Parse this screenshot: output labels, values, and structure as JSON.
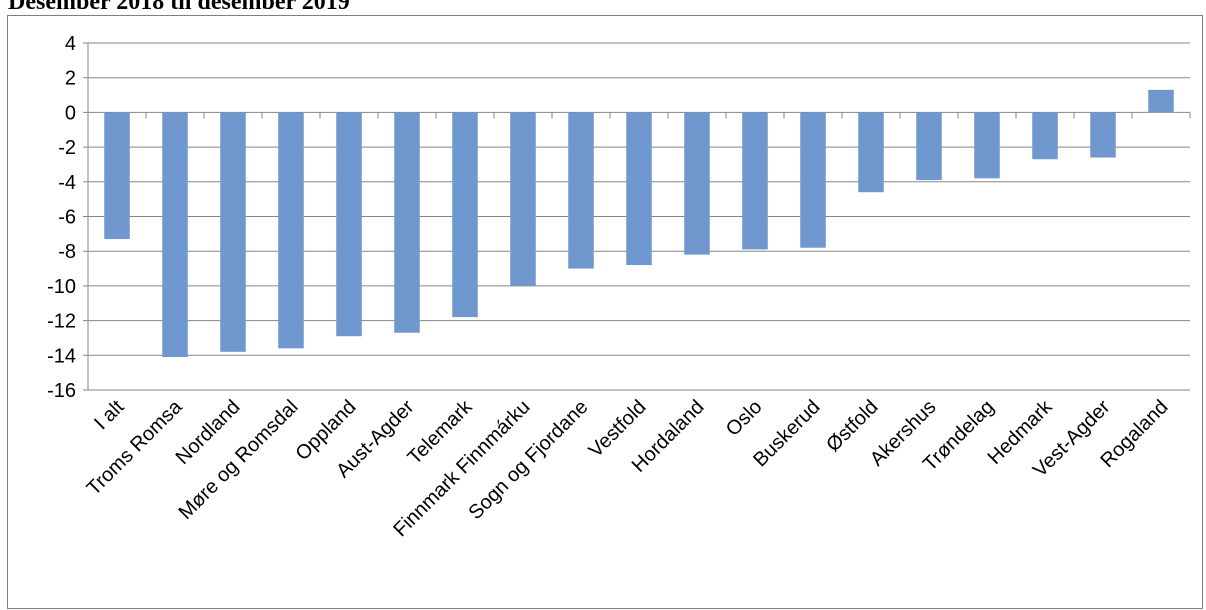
{
  "page": {
    "heading": "Desember 2018 til desember 2019"
  },
  "chart_data": {
    "type": "bar",
    "title": "",
    "xlabel": "",
    "ylabel": "",
    "ylim": [
      -16,
      4
    ],
    "ytick_step": 2,
    "grid": true,
    "legend": "none",
    "bar_color": "#7098CE",
    "categories": [
      "I alt",
      "Troms Romsa",
      "Nordland",
      "Møre og Romsdal",
      "Oppland",
      "Aust-Agder",
      "Telemark",
      "Finnmark Finnmárku",
      "Sogn og Fjordane",
      "Vestfold",
      "Hordaland",
      "Oslo",
      "Buskerud",
      "Østfold",
      "Akershus",
      "Trøndelag",
      "Hedmark",
      "Vest-Agder",
      "Rogaland"
    ],
    "values": [
      -7.3,
      -14.1,
      -13.8,
      -13.6,
      -12.9,
      -12.7,
      -11.8,
      -10.0,
      -9.0,
      -8.8,
      -8.2,
      -7.9,
      -7.8,
      -4.6,
      -3.9,
      -3.8,
      -2.7,
      -2.6,
      1.3
    ]
  }
}
